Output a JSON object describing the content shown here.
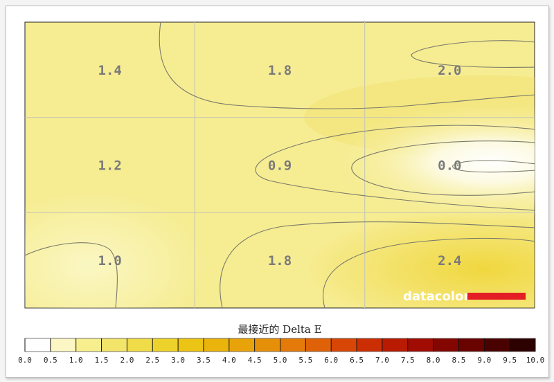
{
  "chart_data": {
    "type": "heatmap",
    "title": "最接近的 Delta E",
    "rows": 3,
    "cols": 3,
    "values": [
      [
        1.4,
        1.8,
        2.0
      ],
      [
        1.2,
        0.9,
        0.0
      ],
      [
        1.0,
        1.8,
        2.4
      ]
    ],
    "value_labels": [
      [
        "1.4",
        "1.8",
        "2.0"
      ],
      [
        "1.2",
        "0.9",
        "0.0"
      ],
      [
        "1.0",
        "1.8",
        "2.4"
      ]
    ],
    "colorbar": {
      "ticks": [
        "0.0",
        "0.5",
        "1.0",
        "1.5",
        "2.0",
        "2.5",
        "3.0",
        "3.5",
        "4.0",
        "4.5",
        "5.0",
        "5.5",
        "6.0",
        "6.5",
        "7.0",
        "7.5",
        "8.0",
        "8.5",
        "9.0",
        "9.5",
        "10.0"
      ],
      "range": [
        0,
        10
      ],
      "colors": [
        "#ffffff",
        "#fbf6c4",
        "#f7ee8e",
        "#f3e46a",
        "#f0db48",
        "#eed22c",
        "#ecc415",
        "#eab40d",
        "#e8a30b",
        "#e6900a",
        "#e37a09",
        "#df6108",
        "#d84606",
        "#cc2e04",
        "#b81a02",
        "#a00c01",
        "#840600",
        "#680300",
        "#4a0200",
        "#2c0100"
      ],
      "grid": true
    },
    "grid": true,
    "logo": {
      "text": "datacolor",
      "bar_color": "#e31e24"
    }
  }
}
